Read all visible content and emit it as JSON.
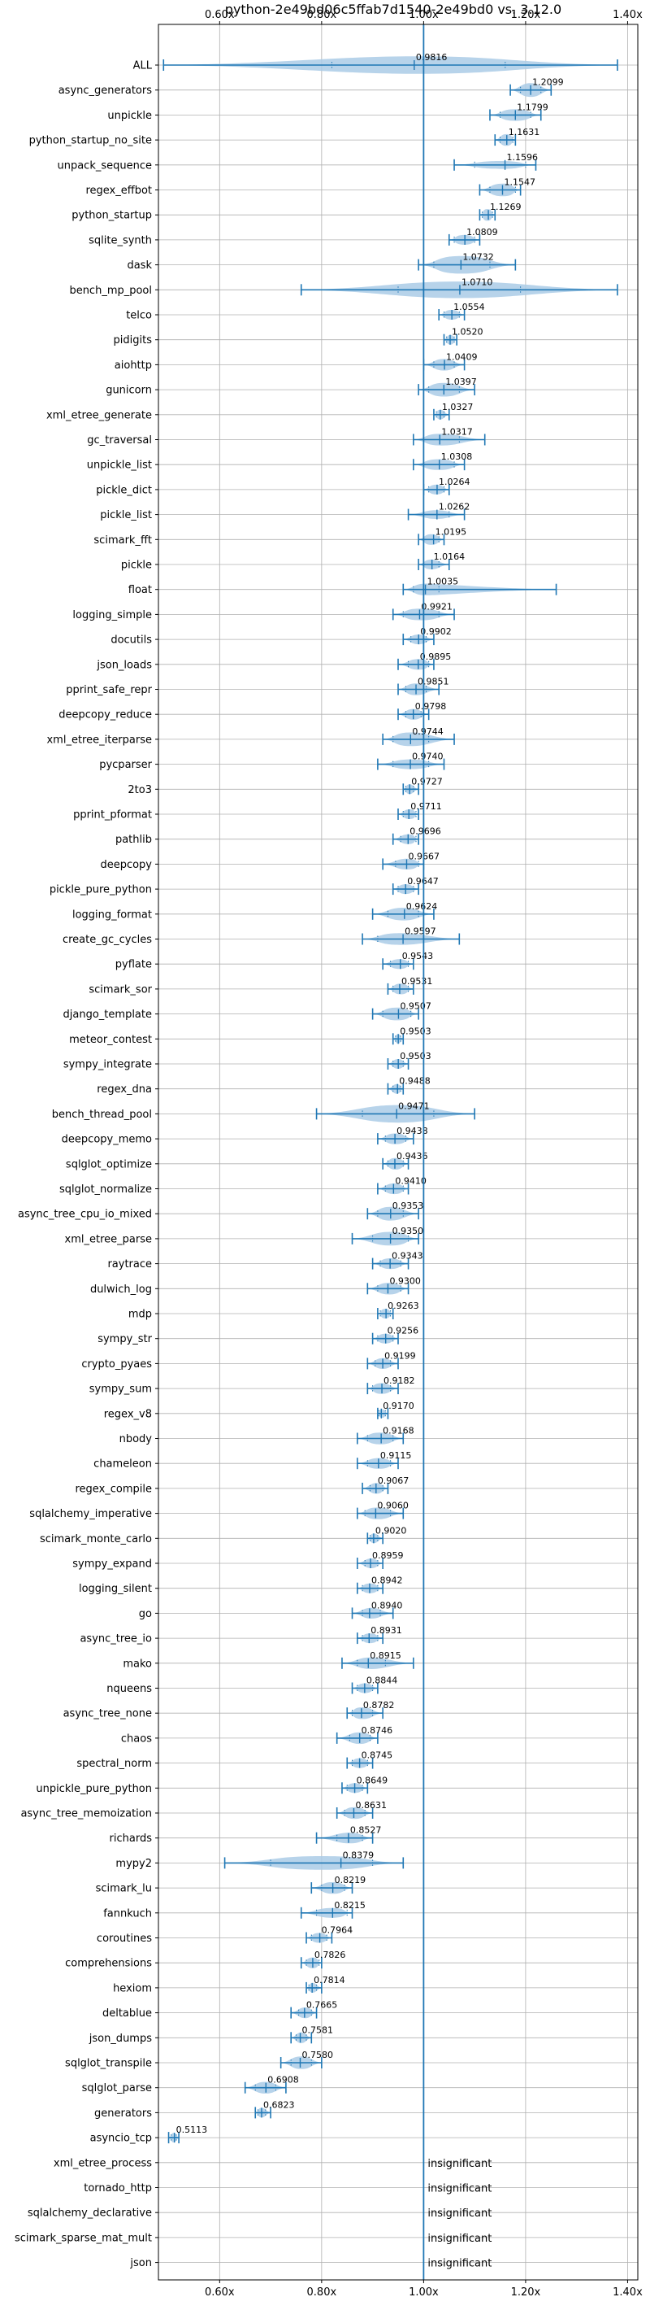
{
  "chart_data": {
    "type": "violin",
    "title": "python-2e49bd06c5ffab7d1540-2e49bd0 vs. 3.12.0",
    "x_ticks": [
      "0.60x",
      "0.80x",
      "1.00x",
      "1.20x",
      "1.40x"
    ],
    "x_tick_values": [
      0.6,
      0.8,
      1.0,
      1.2,
      1.4
    ],
    "xlim": [
      0.48,
      1.42
    ],
    "reference_x": 1.0,
    "grid": true,
    "benchmarks": [
      {
        "name": "ALL",
        "label": "0.9816",
        "value": 0.9816,
        "min": 0.49,
        "max": 1.38,
        "q1": 0.82,
        "q3": 1.16,
        "spread": 0.9
      },
      {
        "name": "async_generators",
        "label": "1.2099",
        "value": 1.2099,
        "min": 1.17,
        "max": 1.25,
        "q1": 1.19,
        "q3": 1.23,
        "spread": 0.7
      },
      {
        "name": "unpickle",
        "label": "1.1799",
        "value": 1.1799,
        "min": 1.13,
        "max": 1.23,
        "q1": 1.15,
        "q3": 1.21,
        "spread": 0.6
      },
      {
        "name": "python_startup_no_site",
        "label": "1.1631",
        "value": 1.1631,
        "min": 1.14,
        "max": 1.18,
        "q1": 1.15,
        "q3": 1.175,
        "spread": 0.6
      },
      {
        "name": "unpack_sequence",
        "label": "1.1596",
        "value": 1.1596,
        "min": 1.06,
        "max": 1.22,
        "q1": 1.1,
        "q3": 1.2,
        "spread": 0.4
      },
      {
        "name": "regex_effbot",
        "label": "1.1547",
        "value": 1.1547,
        "min": 1.11,
        "max": 1.19,
        "q1": 1.13,
        "q3": 1.18,
        "spread": 0.65
      },
      {
        "name": "python_startup",
        "label": "1.1269",
        "value": 1.1269,
        "min": 1.11,
        "max": 1.14,
        "q1": 1.115,
        "q3": 1.135,
        "spread": 0.6
      },
      {
        "name": "sqlite_synth",
        "label": "1.0809",
        "value": 1.0809,
        "min": 1.05,
        "max": 1.11,
        "q1": 1.06,
        "q3": 1.1,
        "spread": 0.5
      },
      {
        "name": "dask",
        "label": "1.0732",
        "value": 1.0732,
        "min": 0.99,
        "max": 1.18,
        "q1": 1.02,
        "q3": 1.13,
        "spread": 0.9
      },
      {
        "name": "bench_mp_pool",
        "label": "1.0710",
        "value": 1.071,
        "min": 0.76,
        "max": 1.38,
        "q1": 0.95,
        "q3": 1.19,
        "spread": 0.85
      },
      {
        "name": "telco",
        "label": "1.0554",
        "value": 1.0554,
        "min": 1.03,
        "max": 1.08,
        "q1": 1.04,
        "q3": 1.07,
        "spread": 0.5
      },
      {
        "name": "pidigits",
        "label": "1.0520",
        "value": 1.052,
        "min": 1.04,
        "max": 1.065,
        "q1": 1.045,
        "q3": 1.06,
        "spread": 0.5
      },
      {
        "name": "aiohttp",
        "label": "1.0409",
        "value": 1.0409,
        "min": 1.0,
        "max": 1.08,
        "q1": 1.02,
        "q3": 1.06,
        "spread": 0.6
      },
      {
        "name": "gunicorn",
        "label": "1.0397",
        "value": 1.0397,
        "min": 0.99,
        "max": 1.1,
        "q1": 1.01,
        "q3": 1.07,
        "spread": 0.7
      },
      {
        "name": "xml_etree_generate",
        "label": "1.0327",
        "value": 1.0327,
        "min": 1.02,
        "max": 1.05,
        "q1": 1.025,
        "q3": 1.04,
        "spread": 0.5
      },
      {
        "name": "gc_traversal",
        "label": "1.0317",
        "value": 1.0317,
        "min": 0.98,
        "max": 1.12,
        "q1": 1.0,
        "q3": 1.07,
        "spread": 0.6
      },
      {
        "name": "unpickle_list",
        "label": "1.0308",
        "value": 1.0308,
        "min": 0.98,
        "max": 1.08,
        "q1": 1.0,
        "q3": 1.06,
        "spread": 0.55
      },
      {
        "name": "pickle_dict",
        "label": "1.0264",
        "value": 1.0264,
        "min": 1.0,
        "max": 1.05,
        "q1": 1.01,
        "q3": 1.04,
        "spread": 0.5
      },
      {
        "name": "pickle_list",
        "label": "1.0262",
        "value": 1.0262,
        "min": 0.97,
        "max": 1.08,
        "q1": 1.0,
        "q3": 1.05,
        "spread": 0.45
      },
      {
        "name": "scimark_fft",
        "label": "1.0195",
        "value": 1.0195,
        "min": 0.99,
        "max": 1.04,
        "q1": 1.0,
        "q3": 1.03,
        "spread": 0.55
      },
      {
        "name": "pickle",
        "label": "1.0164",
        "value": 1.0164,
        "min": 0.99,
        "max": 1.05,
        "q1": 1.0,
        "q3": 1.03,
        "spread": 0.5
      },
      {
        "name": "float",
        "label": "1.0035",
        "value": 1.0035,
        "min": 0.96,
        "max": 1.26,
        "q1": 0.98,
        "q3": 1.03,
        "spread": 0.6
      },
      {
        "name": "logging_simple",
        "label": "0.9921",
        "value": 0.9921,
        "min": 0.94,
        "max": 1.06,
        "q1": 0.96,
        "q3": 1.03,
        "spread": 0.6
      },
      {
        "name": "docutils",
        "label": "0.9902",
        "value": 0.9902,
        "min": 0.96,
        "max": 1.02,
        "q1": 0.975,
        "q3": 1.005,
        "spread": 0.5
      },
      {
        "name": "json_loads",
        "label": "0.9895",
        "value": 0.9895,
        "min": 0.95,
        "max": 1.02,
        "q1": 0.97,
        "q3": 1.01,
        "spread": 0.55
      },
      {
        "name": "pprint_safe_repr",
        "label": "0.9851",
        "value": 0.9851,
        "min": 0.95,
        "max": 1.03,
        "q1": 0.965,
        "q3": 1.005,
        "spread": 0.6
      },
      {
        "name": "deepcopy_reduce",
        "label": "0.9798",
        "value": 0.9798,
        "min": 0.95,
        "max": 1.01,
        "q1": 0.965,
        "q3": 0.995,
        "spread": 0.55
      },
      {
        "name": "xml_etree_iterparse",
        "label": "0.9744",
        "value": 0.9744,
        "min": 0.92,
        "max": 1.06,
        "q1": 0.94,
        "q3": 1.01,
        "spread": 0.7
      },
      {
        "name": "pycparser",
        "label": "0.9740",
        "value": 0.974,
        "min": 0.91,
        "max": 1.04,
        "q1": 0.94,
        "q3": 1.01,
        "spread": 0.5
      },
      {
        "name": "2to3",
        "label": "0.9727",
        "value": 0.9727,
        "min": 0.96,
        "max": 0.99,
        "q1": 0.965,
        "q3": 0.98,
        "spread": 0.5
      },
      {
        "name": "pprint_pformat",
        "label": "0.9711",
        "value": 0.9711,
        "min": 0.95,
        "max": 0.99,
        "q1": 0.96,
        "q3": 0.985,
        "spread": 0.5
      },
      {
        "name": "pathlib",
        "label": "0.9696",
        "value": 0.9696,
        "min": 0.94,
        "max": 0.99,
        "q1": 0.955,
        "q3": 0.985,
        "spread": 0.5
      },
      {
        "name": "deepcopy",
        "label": "0.9667",
        "value": 0.9667,
        "min": 0.92,
        "max": 1.0,
        "q1": 0.945,
        "q3": 0.99,
        "spread": 0.55
      },
      {
        "name": "pickle_pure_python",
        "label": "0.9647",
        "value": 0.9647,
        "min": 0.94,
        "max": 0.99,
        "q1": 0.95,
        "q3": 0.98,
        "spread": 0.5
      },
      {
        "name": "logging_format",
        "label": "0.9624",
        "value": 0.9624,
        "min": 0.9,
        "max": 1.02,
        "q1": 0.93,
        "q3": 0.99,
        "spread": 0.65
      },
      {
        "name": "create_gc_cycles",
        "label": "0.9597",
        "value": 0.9597,
        "min": 0.88,
        "max": 1.07,
        "q1": 0.91,
        "q3": 1.0,
        "spread": 0.6
      },
      {
        "name": "pyflate",
        "label": "0.9543",
        "value": 0.9543,
        "min": 0.92,
        "max": 0.98,
        "q1": 0.935,
        "q3": 0.97,
        "spread": 0.5
      },
      {
        "name": "scimark_sor",
        "label": "0.9531",
        "value": 0.9531,
        "min": 0.93,
        "max": 0.98,
        "q1": 0.94,
        "q3": 0.97,
        "spread": 0.55
      },
      {
        "name": "django_template",
        "label": "0.9507",
        "value": 0.9507,
        "min": 0.9,
        "max": 0.99,
        "q1": 0.92,
        "q3": 0.975,
        "spread": 0.65
      },
      {
        "name": "meteor_contest",
        "label": "0.9503",
        "value": 0.9503,
        "min": 0.94,
        "max": 0.96,
        "q1": 0.945,
        "q3": 0.955,
        "spread": 0.5
      },
      {
        "name": "sympy_integrate",
        "label": "0.9503",
        "value": 0.9503,
        "min": 0.93,
        "max": 0.97,
        "q1": 0.94,
        "q3": 0.96,
        "spread": 0.5
      },
      {
        "name": "regex_dna",
        "label": "0.9488",
        "value": 0.9488,
        "min": 0.93,
        "max": 0.96,
        "q1": 0.94,
        "q3": 0.955,
        "spread": 0.5
      },
      {
        "name": "bench_thread_pool",
        "label": "0.9471",
        "value": 0.9471,
        "min": 0.79,
        "max": 1.1,
        "q1": 0.88,
        "q3": 1.02,
        "spread": 0.9
      },
      {
        "name": "deepcopy_memo",
        "label": "0.9438",
        "value": 0.9438,
        "min": 0.91,
        "max": 0.98,
        "q1": 0.925,
        "q3": 0.965,
        "spread": 0.55
      },
      {
        "name": "sqlglot_optimize",
        "label": "0.9436",
        "value": 0.9436,
        "min": 0.92,
        "max": 0.97,
        "q1": 0.93,
        "q3": 0.96,
        "spread": 0.6
      },
      {
        "name": "sqlglot_normalize",
        "label": "0.9410",
        "value": 0.941,
        "min": 0.91,
        "max": 0.97,
        "q1": 0.925,
        "q3": 0.96,
        "spread": 0.55
      },
      {
        "name": "async_tree_cpu_io_mixed",
        "label": "0.9353",
        "value": 0.9353,
        "min": 0.89,
        "max": 0.99,
        "q1": 0.91,
        "q3": 0.96,
        "spread": 0.7
      },
      {
        "name": "xml_etree_parse",
        "label": "0.9350",
        "value": 0.935,
        "min": 0.86,
        "max": 0.99,
        "q1": 0.9,
        "q3": 0.97,
        "spread": 0.7
      },
      {
        "name": "raytrace",
        "label": "0.9343",
        "value": 0.9343,
        "min": 0.9,
        "max": 0.97,
        "q1": 0.915,
        "q3": 0.955,
        "spread": 0.55
      },
      {
        "name": "dulwich_log",
        "label": "0.9300",
        "value": 0.93,
        "min": 0.89,
        "max": 0.97,
        "q1": 0.91,
        "q3": 0.955,
        "spread": 0.6
      },
      {
        "name": "mdp",
        "label": "0.9263",
        "value": 0.9263,
        "min": 0.91,
        "max": 0.94,
        "q1": 0.915,
        "q3": 0.935,
        "spread": 0.5
      },
      {
        "name": "sympy_str",
        "label": "0.9256",
        "value": 0.9256,
        "min": 0.9,
        "max": 0.95,
        "q1": 0.91,
        "q3": 0.94,
        "spread": 0.5
      },
      {
        "name": "crypto_pyaes",
        "label": "0.9199",
        "value": 0.9199,
        "min": 0.89,
        "max": 0.95,
        "q1": 0.905,
        "q3": 0.935,
        "spread": 0.55
      },
      {
        "name": "sympy_sum",
        "label": "0.9182",
        "value": 0.9182,
        "min": 0.89,
        "max": 0.95,
        "q1": 0.9,
        "q3": 0.935,
        "spread": 0.55
      },
      {
        "name": "regex_v8",
        "label": "0.9170",
        "value": 0.917,
        "min": 0.91,
        "max": 0.93,
        "q1": 0.912,
        "q3": 0.925,
        "spread": 0.45
      },
      {
        "name": "nbody",
        "label": "0.9168",
        "value": 0.9168,
        "min": 0.87,
        "max": 0.96,
        "q1": 0.89,
        "q3": 0.94,
        "spread": 0.6
      },
      {
        "name": "chameleon",
        "label": "0.9115",
        "value": 0.9115,
        "min": 0.87,
        "max": 0.95,
        "q1": 0.89,
        "q3": 0.935,
        "spread": 0.55
      },
      {
        "name": "regex_compile",
        "label": "0.9067",
        "value": 0.9067,
        "min": 0.88,
        "max": 0.93,
        "q1": 0.895,
        "q3": 0.92,
        "spread": 0.55
      },
      {
        "name": "sqlalchemy_imperative",
        "label": "0.9060",
        "value": 0.906,
        "min": 0.87,
        "max": 0.96,
        "q1": 0.885,
        "q3": 0.935,
        "spread": 0.6
      },
      {
        "name": "scimark_monte_carlo",
        "label": "0.9020",
        "value": 0.902,
        "min": 0.89,
        "max": 0.92,
        "q1": 0.895,
        "q3": 0.91,
        "spread": 0.5
      },
      {
        "name": "sympy_expand",
        "label": "0.8959",
        "value": 0.8959,
        "min": 0.87,
        "max": 0.92,
        "q1": 0.885,
        "q3": 0.91,
        "spread": 0.5
      },
      {
        "name": "logging_silent",
        "label": "0.8942",
        "value": 0.8942,
        "min": 0.87,
        "max": 0.92,
        "q1": 0.88,
        "q3": 0.91,
        "spread": 0.5
      },
      {
        "name": "go",
        "label": "0.8940",
        "value": 0.894,
        "min": 0.86,
        "max": 0.94,
        "q1": 0.88,
        "q3": 0.915,
        "spread": 0.55
      },
      {
        "name": "async_tree_io",
        "label": "0.8931",
        "value": 0.8931,
        "min": 0.87,
        "max": 0.92,
        "q1": 0.88,
        "q3": 0.91,
        "spread": 0.5
      },
      {
        "name": "mako",
        "label": "0.8915",
        "value": 0.8915,
        "min": 0.84,
        "max": 0.98,
        "q1": 0.87,
        "q3": 0.925,
        "spread": 0.6
      },
      {
        "name": "nqueens",
        "label": "0.8844",
        "value": 0.8844,
        "min": 0.86,
        "max": 0.91,
        "q1": 0.87,
        "q3": 0.9,
        "spread": 0.5
      },
      {
        "name": "async_tree_none",
        "label": "0.8782",
        "value": 0.8782,
        "min": 0.85,
        "max": 0.92,
        "q1": 0.86,
        "q3": 0.9,
        "spread": 0.6
      },
      {
        "name": "chaos",
        "label": "0.8746",
        "value": 0.8746,
        "min": 0.83,
        "max": 0.91,
        "q1": 0.855,
        "q3": 0.895,
        "spread": 0.6
      },
      {
        "name": "spectral_norm",
        "label": "0.8745",
        "value": 0.8745,
        "min": 0.85,
        "max": 0.9,
        "q1": 0.86,
        "q3": 0.89,
        "spread": 0.5
      },
      {
        "name": "unpickle_pure_python",
        "label": "0.8649",
        "value": 0.8649,
        "min": 0.84,
        "max": 0.89,
        "q1": 0.85,
        "q3": 0.88,
        "spread": 0.5
      },
      {
        "name": "async_tree_memoization",
        "label": "0.8631",
        "value": 0.8631,
        "min": 0.83,
        "max": 0.9,
        "q1": 0.845,
        "q3": 0.885,
        "spread": 0.6
      },
      {
        "name": "richards",
        "label": "0.8527",
        "value": 0.8527,
        "min": 0.79,
        "max": 0.9,
        "q1": 0.83,
        "q3": 0.88,
        "spread": 0.55
      },
      {
        "name": "mypy2",
        "label": "0.8379",
        "value": 0.8379,
        "min": 0.61,
        "max": 0.96,
        "q1": 0.7,
        "q3": 0.9,
        "spread": 0.7
      },
      {
        "name": "scimark_lu",
        "label": "0.8219",
        "value": 0.8219,
        "min": 0.78,
        "max": 0.86,
        "q1": 0.8,
        "q3": 0.845,
        "spread": 0.6
      },
      {
        "name": "fannkuch",
        "label": "0.8215",
        "value": 0.8215,
        "min": 0.76,
        "max": 0.86,
        "q1": 0.79,
        "q3": 0.85,
        "spread": 0.5
      },
      {
        "name": "coroutines",
        "label": "0.7964",
        "value": 0.7964,
        "min": 0.77,
        "max": 0.82,
        "q1": 0.78,
        "q3": 0.81,
        "spread": 0.5
      },
      {
        "name": "comprehensions",
        "label": "0.7826",
        "value": 0.7826,
        "min": 0.76,
        "max": 0.8,
        "q1": 0.77,
        "q3": 0.795,
        "spread": 0.55
      },
      {
        "name": "hexiom",
        "label": "0.7814",
        "value": 0.7814,
        "min": 0.77,
        "max": 0.8,
        "q1": 0.775,
        "q3": 0.79,
        "spread": 0.5
      },
      {
        "name": "deltablue",
        "label": "0.7665",
        "value": 0.7665,
        "min": 0.74,
        "max": 0.79,
        "q1": 0.755,
        "q3": 0.78,
        "spread": 0.55
      },
      {
        "name": "json_dumps",
        "label": "0.7581",
        "value": 0.7581,
        "min": 0.74,
        "max": 0.78,
        "q1": 0.75,
        "q3": 0.77,
        "spread": 0.55
      },
      {
        "name": "sqlglot_transpile",
        "label": "0.7580",
        "value": 0.758,
        "min": 0.72,
        "max": 0.8,
        "q1": 0.74,
        "q3": 0.78,
        "spread": 0.65
      },
      {
        "name": "sqlglot_parse",
        "label": "0.6908",
        "value": 0.6908,
        "min": 0.65,
        "max": 0.73,
        "q1": 0.67,
        "q3": 0.71,
        "spread": 0.6
      },
      {
        "name": "generators",
        "label": "0.6823",
        "value": 0.6823,
        "min": 0.67,
        "max": 0.7,
        "q1": 0.675,
        "q3": 0.69,
        "spread": 0.5
      },
      {
        "name": "asyncio_tcp",
        "label": "0.5113",
        "value": 0.5113,
        "min": 0.5,
        "max": 0.52,
        "q1": 0.505,
        "q3": 0.515,
        "spread": 0.5
      },
      {
        "name": "xml_etree_process",
        "label": "insignificant",
        "insignificant": true
      },
      {
        "name": "tornado_http",
        "label": "insignificant",
        "insignificant": true
      },
      {
        "name": "sqlalchemy_declarative",
        "label": "insignificant",
        "insignificant": true
      },
      {
        "name": "scimark_sparse_mat_mult",
        "label": "insignificant",
        "insignificant": true
      },
      {
        "name": "json",
        "label": "insignificant",
        "insignificant": true
      }
    ],
    "colors": {
      "violin_fill": "#aacbe6",
      "line": "#1f77b4",
      "grid": "#b0b0b0",
      "axis": "#000000",
      "text": "#000000"
    }
  }
}
